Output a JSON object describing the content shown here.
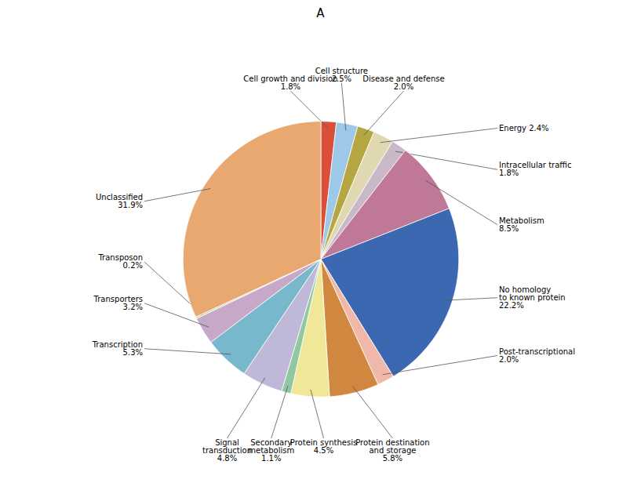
{
  "chart_data": {
    "type": "pie",
    "title": "A",
    "categories": [
      "Cell growth and division\n1.8%",
      "Cell structure\n2.5%",
      "Disease and defense\n2.0%",
      "Energy 2.4%",
      "Intracellular traffic\n1.8%",
      "Metabolism\n8.5%",
      "No homology\nto known protein\n22.2%",
      "Post-transcriptional\n2.0%",
      "Protein destination\nand storage\n5.8%",
      "Protein synthesis\n4.5%",
      "Secondary\nmetabolism\n1.1%",
      "Signal\ntransduction\n4.8%",
      "Transcription\n5.3%",
      "Transporters\n3.2%",
      "Transposon\n0.2%",
      "Unclassified\n31.9%"
    ],
    "values": [
      1.8,
      2.5,
      2.0,
      2.4,
      1.8,
      8.5,
      22.2,
      2.0,
      5.8,
      4.5,
      1.1,
      4.8,
      5.3,
      3.2,
      0.2,
      31.9
    ],
    "colors": [
      "#D94F3A",
      "#9EC8E8",
      "#B5A642",
      "#E0D8B0",
      "#C8B8C8",
      "#C07898",
      "#3B68B0",
      "#F0B8A8",
      "#D08840",
      "#F0E898",
      "#90C8A0",
      "#C0B8D8",
      "#78B8CC",
      "#C8A8C8",
      "#C0D8B0",
      "#E8A870"
    ]
  }
}
